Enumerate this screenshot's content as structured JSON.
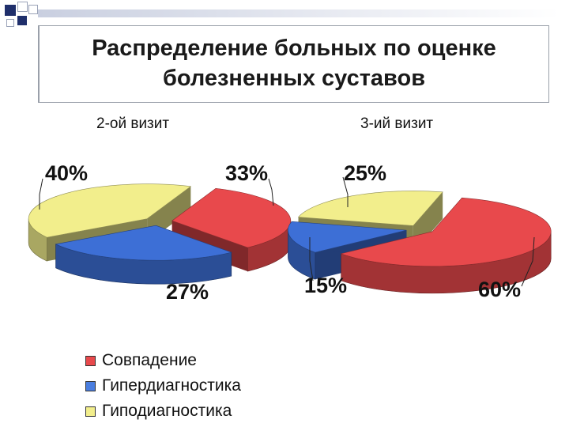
{
  "slide": {
    "title": "Распределение больных по оценке\nболезненных суставов"
  },
  "chart_data": [
    {
      "type": "pie",
      "title": "2-ой визит",
      "categories": [
        "Совпадение",
        "Гипердиагностика",
        "Гиподиагностика"
      ],
      "values": [
        33,
        27,
        40
      ],
      "value_labels": [
        "33%",
        "27%",
        "40%"
      ],
      "colors": [
        "#e8494c",
        "#3d6fd6",
        "#f2ee8c"
      ]
    },
    {
      "type": "pie",
      "title": "3-ий визит",
      "categories": [
        "Совпадение",
        "Гипердиагностика",
        "Гиподиагностика"
      ],
      "values": [
        60,
        15,
        25
      ],
      "value_labels": [
        "60%",
        "15%",
        "25%"
      ],
      "colors": [
        "#e8494c",
        "#3d6fd6",
        "#f2ee8c"
      ]
    }
  ],
  "legend": [
    {
      "label": "Совпадение",
      "color": "#e8494c"
    },
    {
      "label": "Гипердиагностика",
      "color": "#4a7ee0"
    },
    {
      "label": "Гиподиагностика",
      "color": "#f2ee8c"
    }
  ]
}
